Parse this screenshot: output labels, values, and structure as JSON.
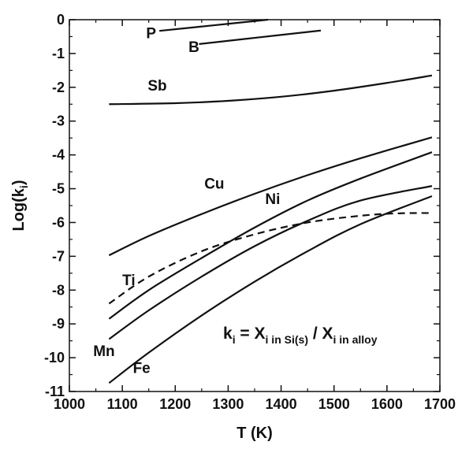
{
  "chart_data": {
    "type": "line",
    "xlabel": "T (K)",
    "ylabel_main": "Log(k",
    "ylabel_sub": "i",
    "ylabel_close": ")",
    "xlim": [
      1000,
      1700
    ],
    "ylim": [
      -11,
      0
    ],
    "xticks": [
      "1000",
      "1100",
      "1200",
      "1300",
      "1400",
      "1500",
      "1600",
      "1700"
    ],
    "yticks": [
      "0",
      "-1",
      "-2",
      "-3",
      "-4",
      "-5",
      "-6",
      "-7",
      "-8",
      "-9",
      "-10",
      "-11"
    ],
    "grid": false,
    "annotation": {
      "k": "k",
      "k_sub": "i",
      "eq": " = X",
      "num_sub": "i in Si(s)",
      "slash": " / X",
      "den_sub": "i in alloy"
    },
    "series": [
      {
        "name": "P",
        "style": "solid",
        "x": [
          1170,
          1270,
          1375
        ],
        "y": [
          -0.33,
          -0.17,
          0.0
        ]
      },
      {
        "name": "B",
        "style": "solid",
        "x": [
          1245,
          1360,
          1475
        ],
        "y": [
          -0.72,
          -0.52,
          -0.32
        ]
      },
      {
        "name": "Sb",
        "style": "solid",
        "x": [
          1075,
          1200,
          1300,
          1400,
          1500,
          1600,
          1685
        ],
        "y": [
          -2.5,
          -2.47,
          -2.4,
          -2.28,
          -2.1,
          -1.87,
          -1.65
        ]
      },
      {
        "name": "Cu",
        "style": "solid",
        "x": [
          1075,
          1150,
          1250,
          1350,
          1450,
          1550,
          1685
        ],
        "y": [
          -6.97,
          -6.4,
          -5.75,
          -5.15,
          -4.6,
          -4.1,
          -3.48
        ]
      },
      {
        "name": "Ni",
        "style": "solid",
        "x": [
          1075,
          1150,
          1250,
          1350,
          1450,
          1550,
          1685
        ],
        "y": [
          -8.85,
          -8.0,
          -7.05,
          -6.15,
          -5.35,
          -4.7,
          -3.92
        ]
      },
      {
        "name": "Ti",
        "style": "dashed",
        "x": [
          1075,
          1150,
          1250,
          1350,
          1450,
          1550,
          1620,
          1685
        ],
        "y": [
          -8.4,
          -7.6,
          -6.85,
          -6.35,
          -6.0,
          -5.8,
          -5.73,
          -5.72
        ]
      },
      {
        "name": "Mn",
        "style": "solid",
        "x": [
          1075,
          1150,
          1250,
          1350,
          1450,
          1550,
          1685
        ],
        "y": [
          -9.45,
          -8.6,
          -7.6,
          -6.7,
          -5.95,
          -5.35,
          -4.92
        ]
      },
      {
        "name": "Fe",
        "style": "solid",
        "x": [
          1075,
          1150,
          1250,
          1350,
          1450,
          1550,
          1685
        ],
        "y": [
          -10.75,
          -9.85,
          -8.75,
          -7.75,
          -6.85,
          -6.05,
          -5.22
        ]
      }
    ],
    "labels": [
      {
        "text": "P",
        "x": 1145,
        "y": -0.55
      },
      {
        "text": "B",
        "x": 1225,
        "y": -0.95
      },
      {
        "text": "Sb",
        "x": 1148,
        "y": -2.1
      },
      {
        "text": "Cu",
        "x": 1255,
        "y": -5.0
      },
      {
        "text": "Ni",
        "x": 1370,
        "y": -5.45
      },
      {
        "text": "Ti",
        "x": 1100,
        "y": -7.85
      },
      {
        "text": "Mn",
        "x": 1045,
        "y": -9.95
      },
      {
        "text": "Fe",
        "x": 1120,
        "y": -10.45
      }
    ]
  }
}
